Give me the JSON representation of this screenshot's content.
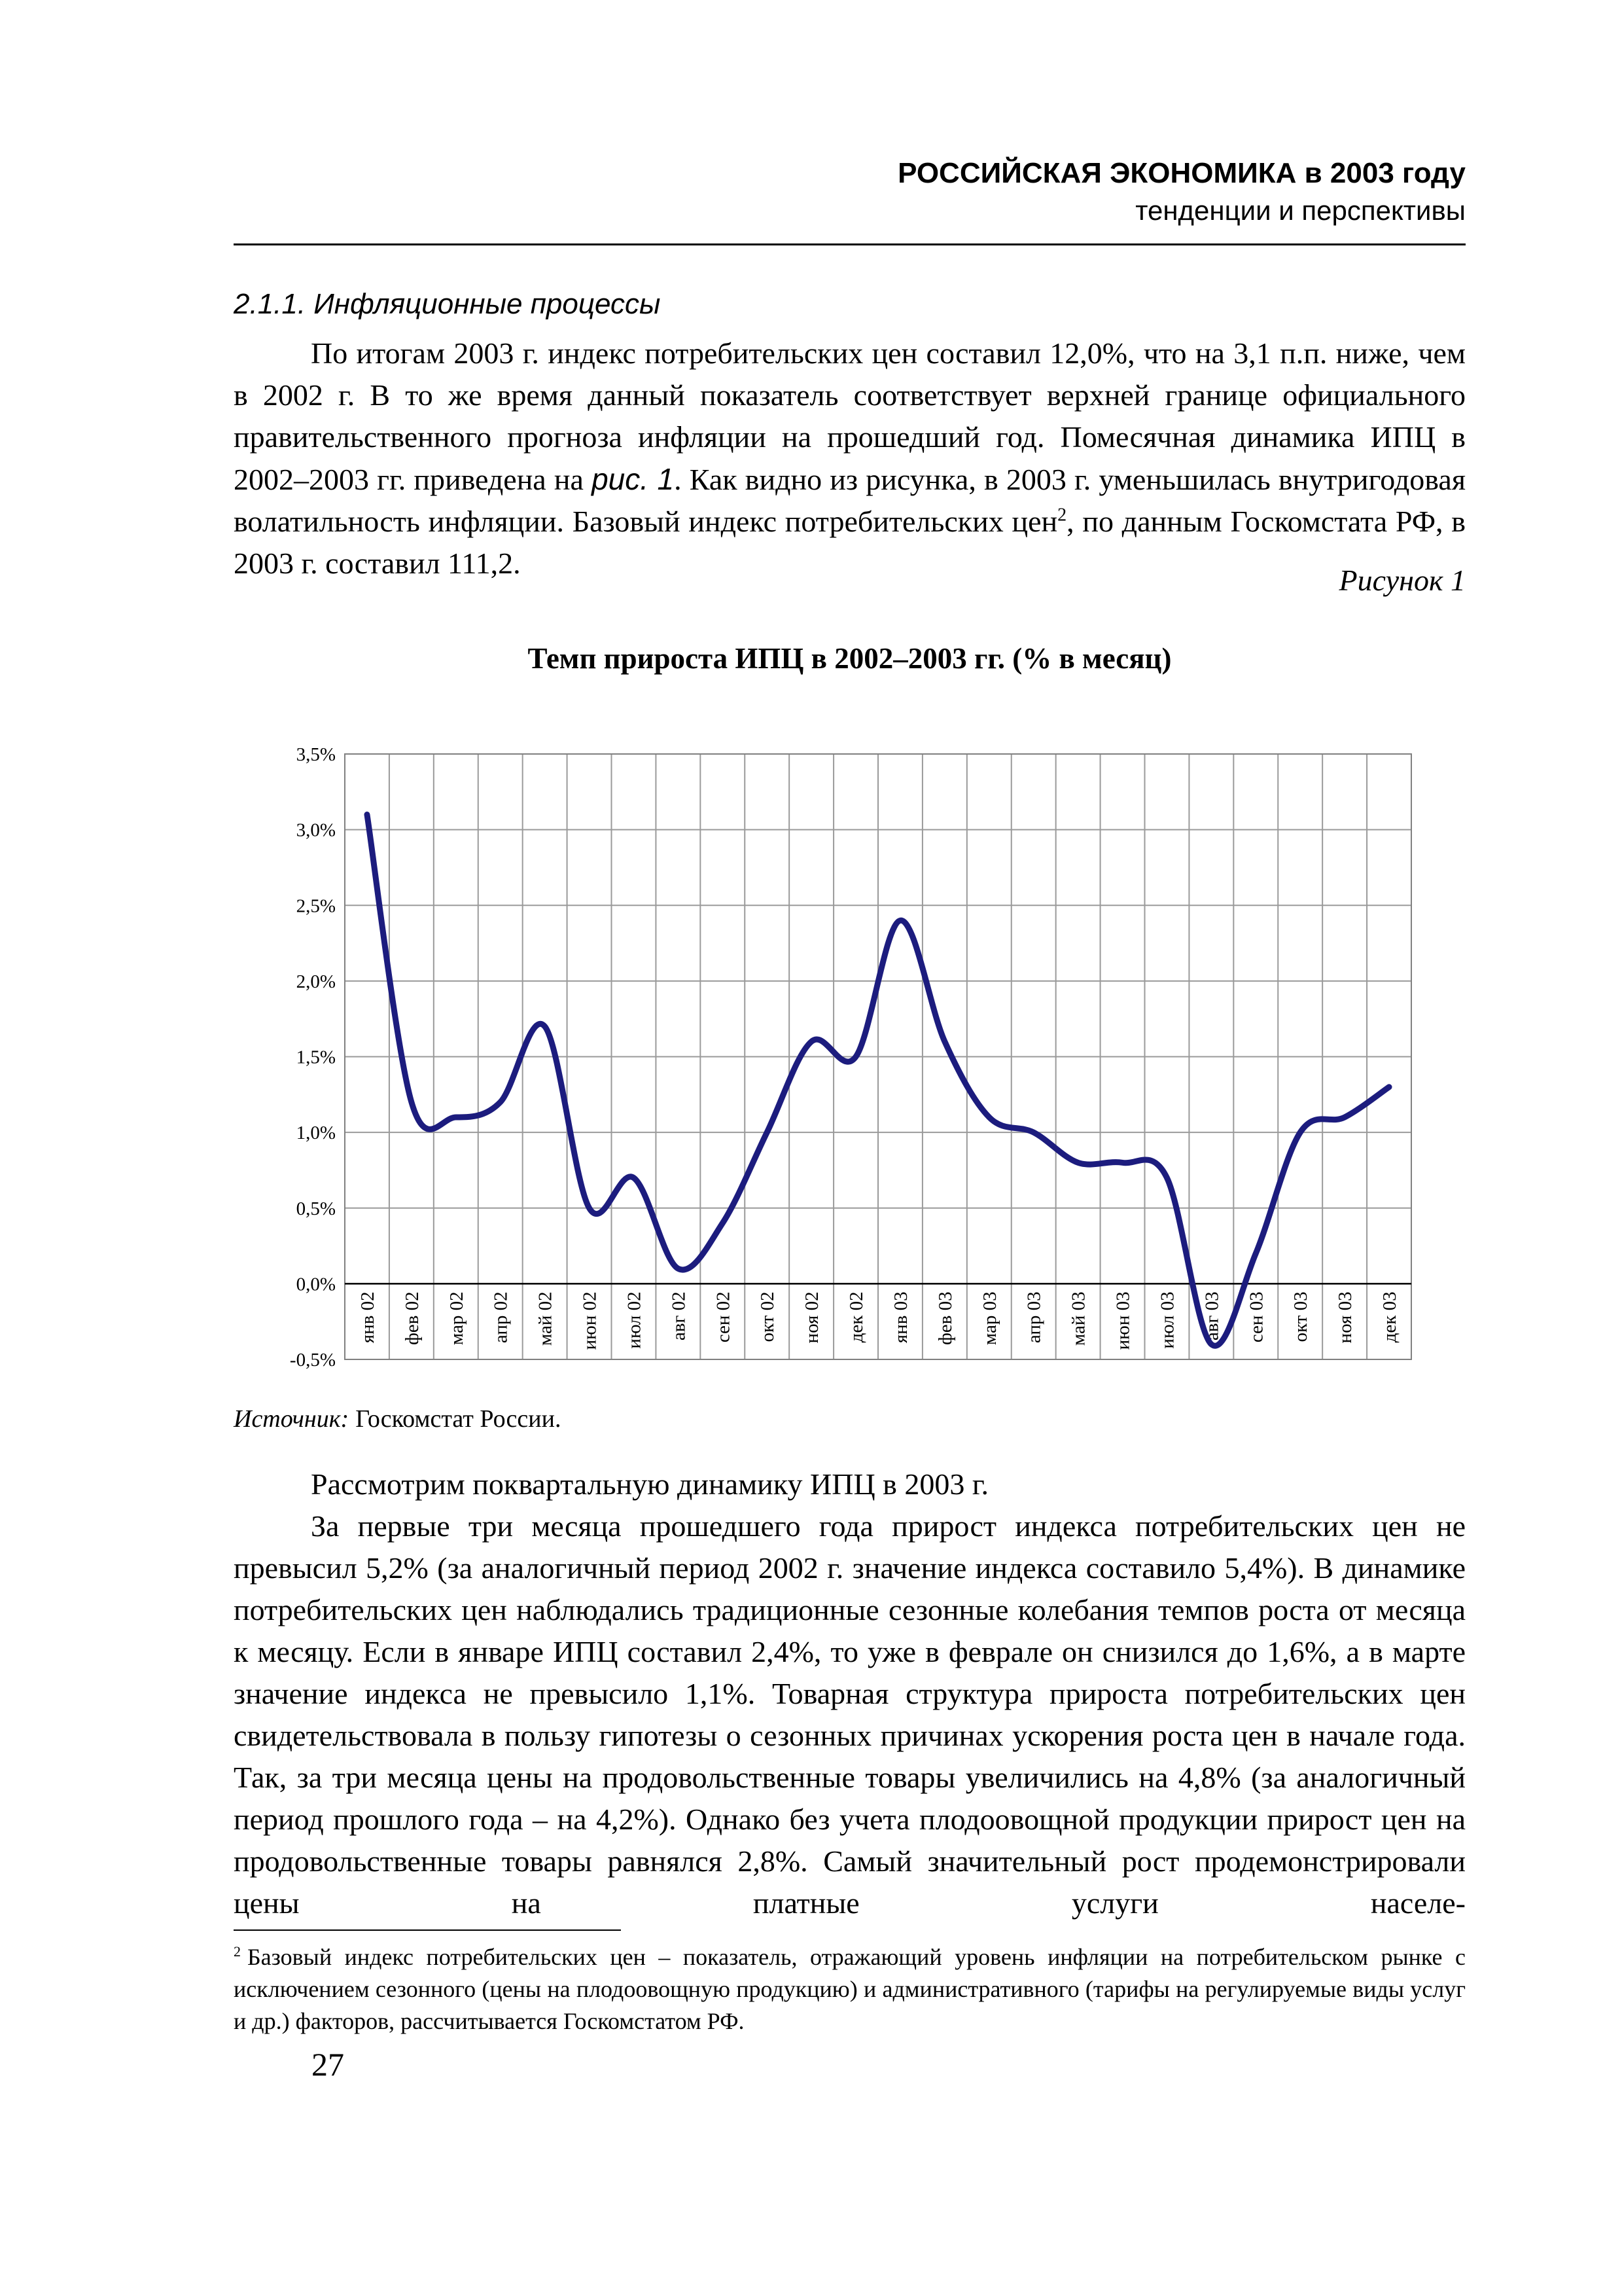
{
  "header": {
    "title": "РОССИЙСКАЯ ЭКОНОМИКА в 2003 году",
    "subtitle": "тенденции и перспективы"
  },
  "section_title": "2.1.1. Инфляционные процессы",
  "intro": {
    "parts": [
      "По итогам 2003 г. индекс потребительских цен составил 12,0%, что на 3,1 п.п. ниже, чем в 2002 г. В то же время данный показатель соответствует верхней границе официального правительственного прогноза инфляции на прошедший год. Помесячная динамика ИПЦ в 2002–2003 гг. приведена на ",
      "рис. 1",
      ". Как видно из рисунка, в 2003 г. уменьшилась внутригодовая волатильность инфляции. Базовый индекс потребительских цен",
      "2",
      ", по данным Госкомстата РФ, в 2003 г. составил 111,2."
    ]
  },
  "figure_label": "Рисунок 1",
  "chart_data": {
    "type": "line",
    "title": "Темп прироста ИПЦ в 2002–2003 гг. (% в месяц)",
    "categories": [
      "янв 02",
      "фев 02",
      "мар 02",
      "апр 02",
      "май 02",
      "июн 02",
      "июл 02",
      "авг 02",
      "сен 02",
      "окт 02",
      "ноя 02",
      "дек 02",
      "янв 03",
      "фев 03",
      "мар 03",
      "апр 03",
      "май 03",
      "июн 03",
      "июл 03",
      "авг 03",
      "сен 03",
      "окт 03",
      "ноя 03",
      "дек 03"
    ],
    "values": [
      3.1,
      1.2,
      1.1,
      1.2,
      1.7,
      0.5,
      0.7,
      0.1,
      0.4,
      1.0,
      1.6,
      1.5,
      2.4,
      1.6,
      1.1,
      1.0,
      0.8,
      0.8,
      0.7,
      -0.4,
      0.2,
      1.0,
      1.1,
      1.3
    ],
    "color": "#1c1c7e",
    "ylim": [
      -0.5,
      3.5
    ],
    "yticks": [
      {
        "value": -0.5,
        "label": "-0,5%"
      },
      {
        "value": 0,
        "label": "0,0%"
      },
      {
        "value": 0.5,
        "label": "0,5%"
      },
      {
        "value": 1,
        "label": "1,0%"
      },
      {
        "value": 1.5,
        "label": "1,5%"
      },
      {
        "value": 2,
        "label": "2,0%"
      },
      {
        "value": 2.5,
        "label": "2,5%"
      },
      {
        "value": 3,
        "label": "3,0%"
      },
      {
        "value": 3.5,
        "label": "3,5%"
      }
    ],
    "grid": true
  },
  "source": {
    "label": "Источник:",
    "text": "Госкомстат России."
  },
  "paragraphs": [
    "Рассмотрим поквартальную динамику ИПЦ в 2003 г.",
    "За первые три месяца прошедшего года прирост индекса потребительских цен не превысил 5,2% (за аналогичный период 2002 г. значение индекса составило 5,4%). В динамике потребительских цен наблюдались традиционные сезонные колебания темпов роста от месяца к месяцу. Если в январе ИПЦ составил 2,4%, то уже в феврале он снизился до 1,6%, а в марте значение индекса не превысило 1,1%. Товарная структура прироста потребительских цен свидетельствовала в пользу гипотезы о сезонных причинах ускорения роста цен в начале года. Так, за три месяца цены на продовольственные товары увеличились на 4,8% (за аналогичный период прошлого года – на 4,2%). Однако без учета плодоовощной продукции прирост цен на продовольственные товары равнялся 2,8%. Самый значительный рост продемонстрировали цены на платные услуги населе-"
  ],
  "footnote": {
    "mark": "2",
    "text": "Базовый индекс потребительских цен – показатель, отражающий уровень инфляции на потребительском рынке с исключением сезонного (цены на плодоовощную продукцию) и административного (тарифы на регулируемые виды услуг и др.) факторов, рассчитывается Госкомстатом РФ."
  },
  "page_number": "27"
}
